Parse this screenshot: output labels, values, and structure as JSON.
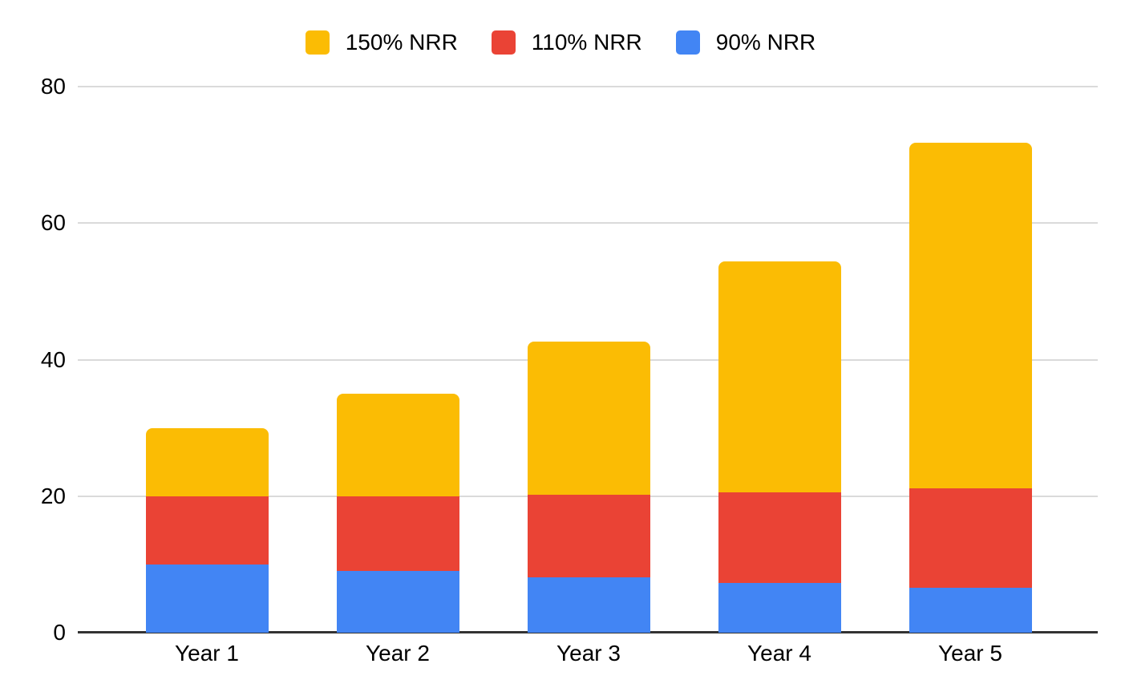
{
  "chart_data": {
    "type": "bar",
    "stacked": true,
    "title": "",
    "xlabel": "",
    "ylabel": "",
    "categories": [
      "Year 1",
      "Year 2",
      "Year 3",
      "Year 4",
      "Year 5"
    ],
    "series": [
      {
        "name": "90% NRR",
        "color": "#4285F4",
        "values": [
          10,
          9,
          8.1,
          7.29,
          6.56
        ]
      },
      {
        "name": "110% NRR",
        "color": "#EA4335",
        "values": [
          10,
          11,
          12.1,
          13.31,
          14.64
        ]
      },
      {
        "name": "150% NRR",
        "color": "#FBBC04",
        "values": [
          10,
          15,
          22.5,
          33.75,
          50.63
        ]
      }
    ],
    "stack_totals": [
      30,
      35,
      42.7,
      54.35,
      71.83
    ],
    "legend_order": [
      "150% NRR",
      "110% NRR",
      "90% NRR"
    ],
    "legend_position": "top",
    "ylim": [
      0,
      80
    ],
    "yticks": [
      0,
      20,
      40,
      60,
      80
    ],
    "grid": true
  },
  "style": {
    "gridline_color": "#dadada",
    "axis_line_color": "#333333",
    "text_color": "#000000",
    "background_color": "#ffffff"
  }
}
